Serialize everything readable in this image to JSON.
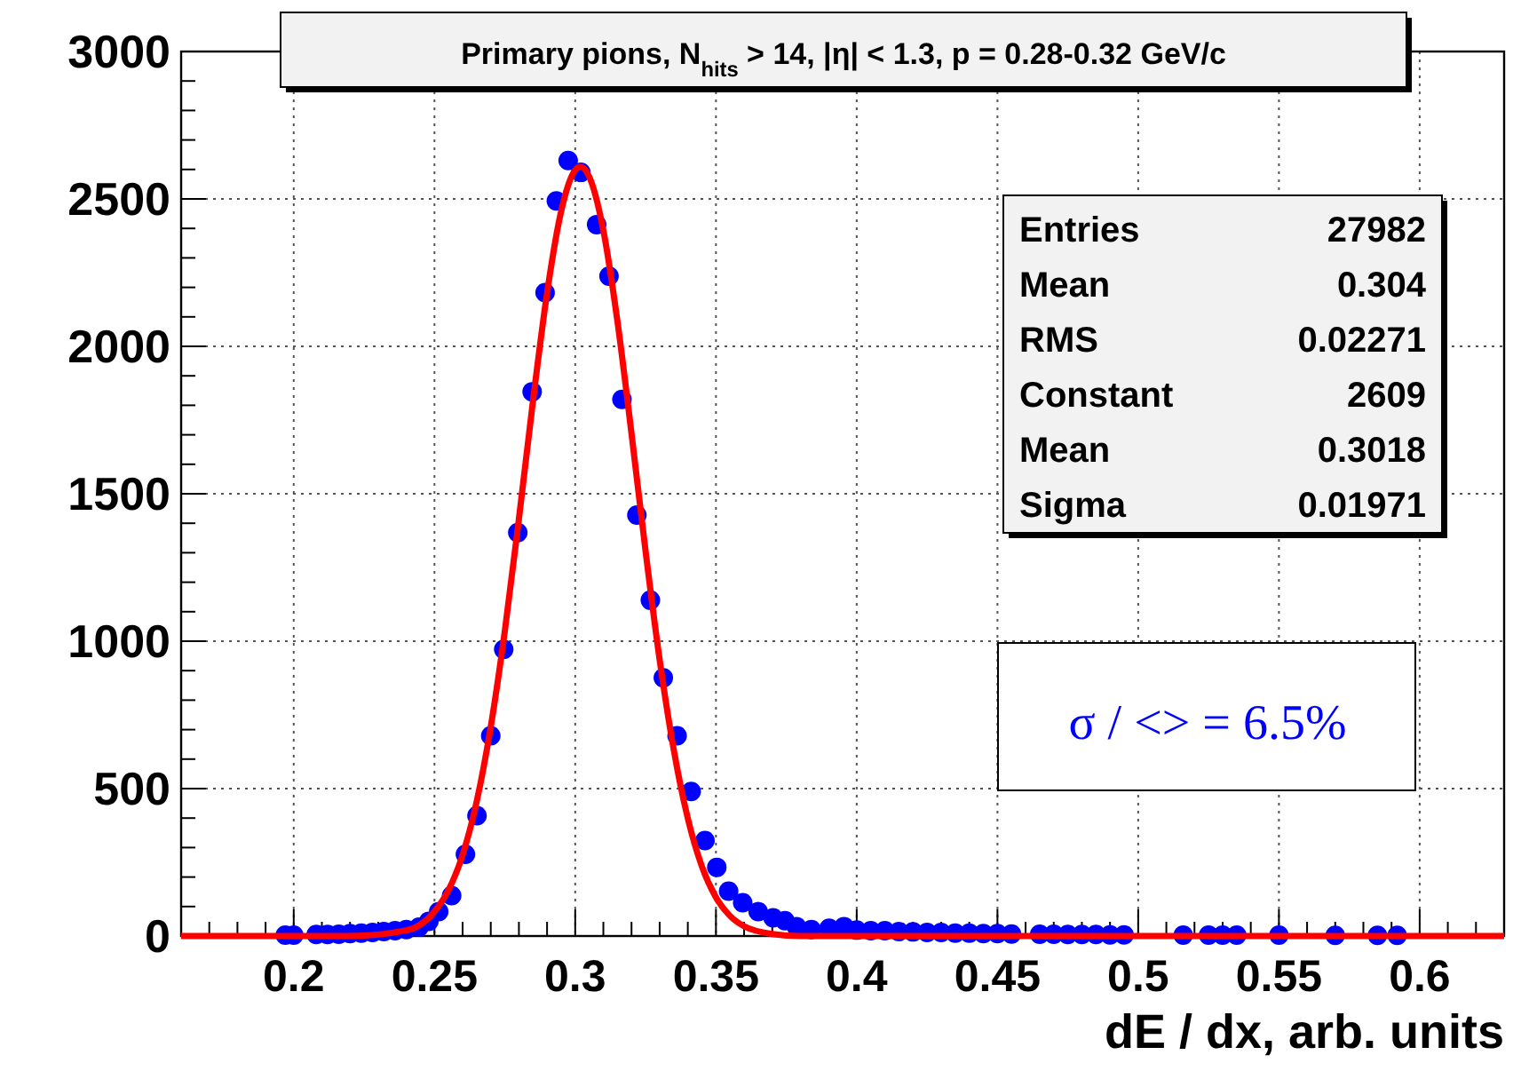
{
  "chart_data": {
    "type": "scatter",
    "title": "Primary pions, N$_{hits}$ > 14, |η| < 1.3, p = 0.28-0.32 GeV/c",
    "xlabel": "dE / dx, arb. units",
    "annotations": [
      "Entries",
      "27982",
      "Mean",
      "0.304",
      "RMS",
      "0.02271",
      "Constant",
      "2609",
      "Mean",
      "0.3018",
      "Sigma",
      "0.01971",
      "σ / <> = 6.5%"
    ],
    "xlim": [
      0.16,
      0.63
    ],
    "xticks": [
      {
        "value": 0.16,
        "label": null
      },
      {
        "value": 0.17,
        "label": null
      },
      {
        "value": 0.18,
        "label": null
      },
      {
        "value": 0.19,
        "label": null
      },
      {
        "value": 0.2,
        "label": "0.2"
      },
      {
        "value": 0.21,
        "label": null
      },
      {
        "value": 0.22,
        "label": null
      },
      {
        "value": 0.23,
        "label": null
      },
      {
        "value": 0.24,
        "label": null
      },
      0.25,
      {
        "value": 0.26,
        "label": null
      },
      {
        "value": 0.27,
        "label": null
      },
      {
        "value": 0.28,
        "label": null
      },
      {
        "value": 0.29,
        "label": null
      },
      {
        "value": 0.3,
        "label": "0.3"
      },
      {
        "value": 0.31,
        "label": null
      },
      {
        "value": 0.32,
        "label": null
      },
      {
        "value": 0.33,
        "label": null
      },
      {
        "value": 0.34,
        "label": null
      },
      0.35,
      {
        "value": 0.36,
        "label": null
      },
      {
        "value": 0.37,
        "label": null
      },
      {
        "value": 0.38,
        "label": null
      },
      {
        "value": 0.39,
        "label": null
      },
      {
        "value": 0.4,
        "label": "0.4"
      },
      {
        "value": 0.41,
        "label": null
      },
      {
        "value": 0.42,
        "label": null
      },
      {
        "value": 0.43,
        "label": null
      },
      {
        "value": 0.44,
        "label": null
      },
      0.45,
      {
        "value": 0.46,
        "label": null
      },
      {
        "value": 0.47,
        "label": null
      },
      {
        "value": 0.48,
        "label": null
      },
      {
        "value": 0.49,
        "label": null
      },
      {
        "value": 0.5,
        "label": "0.5"
      },
      {
        "value": 0.51,
        "label": null
      },
      {
        "value": 0.52,
        "label": null
      },
      {
        "value": 0.53,
        "label": null
      },
      {
        "value": 0.54,
        "label": null
      },
      0.55,
      {
        "value": 0.56,
        "label": null
      },
      {
        "value": 0.57,
        "label": null
      },
      {
        "value": 0.58,
        "label": null
      },
      {
        "value": 0.59,
        "label": null
      },
      {
        "value": 0.6,
        "label": "0.6"
      },
      {
        "value": 0.61,
        "label": null
      },
      {
        "value": 0.62,
        "label": null
      },
      {
        "value": 0.63,
        "label": null
      }
    ],
    "ylim": [
      0,
      3000
    ],
    "yticks": [
      0,
      {
        "value": 100,
        "label": null
      },
      {
        "value": 200,
        "label": null
      },
      {
        "value": 300,
        "label": null
      },
      {
        "value": 400,
        "label": null
      },
      500,
      {
        "value": 600,
        "label": null
      },
      {
        "value": 700,
        "label": null
      },
      {
        "value": 800,
        "label": null
      },
      {
        "value": 900,
        "label": null
      },
      1000,
      {
        "value": 1100,
        "label": null
      },
      {
        "value": 1200,
        "label": null
      },
      {
        "value": 1300,
        "label": null
      },
      {
        "value": 1400,
        "label": null
      },
      1500,
      {
        "value": 1600,
        "label": null
      },
      {
        "value": 1700,
        "label": null
      },
      {
        "value": 1800,
        "label": null
      },
      {
        "value": 1900,
        "label": null
      },
      2000,
      {
        "value": 2100,
        "label": null
      },
      {
        "value": 2200,
        "label": null
      },
      {
        "value": 2300,
        "label": null
      },
      {
        "value": 2400,
        "label": null
      },
      2500,
      {
        "value": 2600,
        "label": null
      },
      {
        "value": 2700,
        "label": null
      },
      {
        "value": 2800,
        "label": null
      },
      {
        "value": 2900,
        "label": null
      },
      3000
    ],
    "grid": true,
    "marker": "circle",
    "series": [
      {
        "color": "#0000ff",
        "x": [
          0.197,
          0.2,
          0.208,
          0.212,
          0.216,
          0.22,
          0.224,
          0.228,
          0.232,
          0.236,
          0.24,
          0.2445,
          0.248,
          0.2515,
          0.2561,
          0.261,
          0.2651,
          0.27,
          0.2746,
          0.2796,
          0.2847,
          0.2893,
          0.2933,
          0.2975,
          0.302,
          0.3076,
          0.312,
          0.3166,
          0.3219,
          0.3267,
          0.3313,
          0.3362,
          0.3412,
          0.3461,
          0.3503,
          0.3545,
          0.3595,
          0.365,
          0.3703,
          0.3745,
          0.3786,
          0.3839,
          0.3902,
          0.3955,
          0.4,
          0.405,
          0.41,
          0.415,
          0.42,
          0.425,
          0.43,
          0.435,
          0.44,
          0.445,
          0.45,
          0.455,
          0.465,
          0.47,
          0.475,
          0.48,
          0.485,
          0.49,
          0.495,
          0.516,
          0.525,
          0.53,
          0.535,
          0.55,
          0.57,
          0.585,
          0.592
        ],
        "values": [
          3,
          3,
          5,
          5,
          6,
          8,
          10,
          12,
          15,
          18,
          22,
          30,
          50,
          83,
          137,
          277,
          408,
          679,
          972,
          1368,
          1846,
          2182,
          2493,
          2630,
          2590,
          2413,
          2238,
          1820,
          1428,
          1139,
          876,
          679,
          490,
          324,
          233,
          152,
          113,
          83,
          62,
          52,
          32,
          22,
          26,
          32,
          20,
          18,
          18,
          15,
          14,
          12,
          12,
          10,
          10,
          8,
          8,
          7,
          6,
          6,
          5,
          5,
          5,
          4,
          4,
          3,
          3,
          3,
          3,
          3,
          2,
          2,
          2
        ]
      },
      {
        "type": "line",
        "marker": "none",
        "color": "#ff0000",
        "x": [
          0.16,
          0.22,
          0.24,
          0.25,
          0.255,
          0.26,
          0.265,
          0.27,
          0.275,
          0.28,
          0.285,
          0.29,
          0.295,
          0.3,
          0.3018,
          0.305,
          0.31,
          0.315,
          0.32,
          0.325,
          0.33,
          0.335,
          0.34,
          0.345,
          0.35,
          0.355,
          0.36,
          0.37,
          0.38,
          0.63
        ],
        "values": [
          0,
          0,
          19,
          83,
          156,
          275,
          456,
          710,
          1035,
          1415,
          1815,
          2181,
          2458,
          2598,
          2609,
          2575,
          2393,
          2085,
          1704,
          1305,
          937,
          632,
          399,
          236,
          131,
          68,
          33,
          7,
          0,
          0
        ]
      }
    ]
  }
}
